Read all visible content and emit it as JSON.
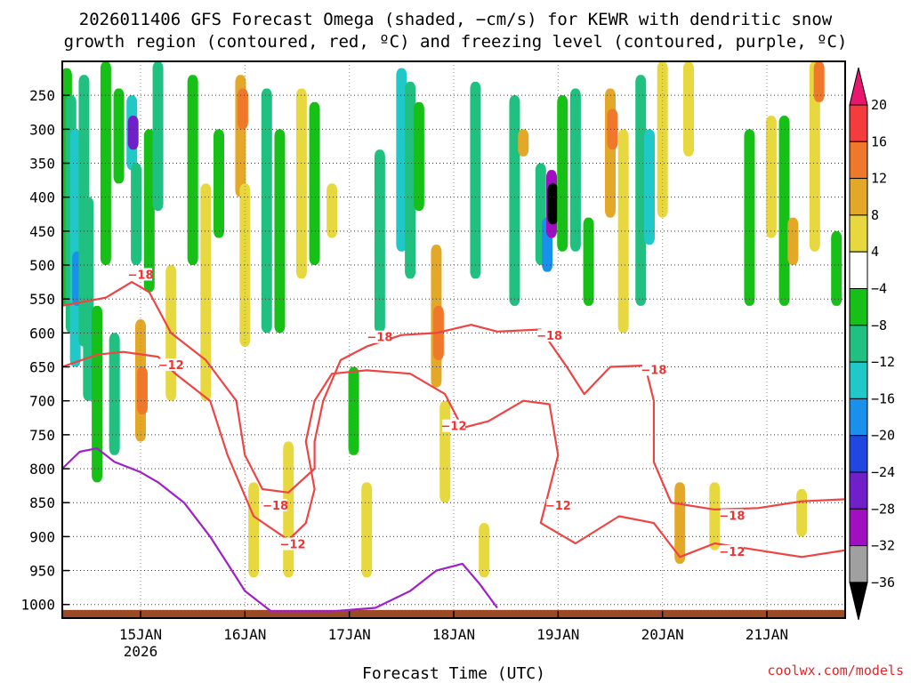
{
  "chart_data": {
    "type": "heatmap",
    "title_lines": [
      "2026011406 GFS Forecast Omega (shaded, −cm/s) for KEWR with dendritic snow",
      "growth region (contoured, red, ºC) and freezing level (contoured, purple, ºC)"
    ],
    "xlabel": "Forecast Time (UTC)",
    "credit": "coolwx.com/models",
    "x_ticks": [
      {
        "t": 18,
        "label": "15JAN",
        "sub": "2026"
      },
      {
        "t": 42,
        "label": "16JAN",
        "sub": ""
      },
      {
        "t": 66,
        "label": "17JAN",
        "sub": ""
      },
      {
        "t": 90,
        "label": "18JAN",
        "sub": ""
      },
      {
        "t": 114,
        "label": "19JAN",
        "sub": ""
      },
      {
        "t": 138,
        "label": "20JAN",
        "sub": ""
      },
      {
        "t": 162,
        "label": "21JAN",
        "sub": ""
      }
    ],
    "xlim_hours": [
      0,
      180
    ],
    "y_ticks": [
      {
        "p": 250,
        "label": "250"
      },
      {
        "p": 300,
        "label": "300"
      },
      {
        "p": 350,
        "label": "350"
      },
      {
        "p": 400,
        "label": "400"
      },
      {
        "p": 450,
        "label": "450"
      },
      {
        "p": 500,
        "label": "500"
      },
      {
        "p": 550,
        "label": "550"
      },
      {
        "p": 600,
        "label": "600"
      },
      {
        "p": 650,
        "label": "650"
      },
      {
        "p": 700,
        "label": "700"
      },
      {
        "p": 750,
        "label": "750"
      },
      {
        "p": 800,
        "label": "800"
      },
      {
        "p": 850,
        "label": "850"
      },
      {
        "p": 900,
        "label": "900"
      },
      {
        "p": 950,
        "label": "950"
      },
      {
        "p": 1000,
        "label": "1000"
      }
    ],
    "ylim_hpa": [
      200,
      1020
    ],
    "grid": true,
    "colorbar": {
      "labels": [
        "20",
        "16",
        "12",
        "8",
        "4",
        "−4",
        "−8",
        "−12",
        "−16",
        "−20",
        "−24",
        "−28",
        "−32",
        "−36"
      ],
      "levels": [
        20,
        16,
        12,
        8,
        4,
        -4,
        -8,
        -12,
        -16,
        -20,
        -24,
        -28,
        -32,
        -36
      ],
      "colors": [
        "#e8166e",
        "#f43c3c",
        "#f0782a",
        "#e4a828",
        "#e8d840",
        "#ffffff",
        "#16c016",
        "#20c080",
        "#20c8c8",
        "#1890ec",
        "#2048e0",
        "#7020c8",
        "#a010c0",
        "#a0a0a0",
        "#000000"
      ]
    },
    "shading": [
      {
        "t": 1,
        "p1": 210,
        "p2": 560,
        "v": -6
      },
      {
        "t": 2,
        "p1": 250,
        "p2": 600,
        "v": -10
      },
      {
        "t": 3,
        "p1": 300,
        "p2": 650,
        "v": -12
      },
      {
        "t": 3.5,
        "p1": 480,
        "p2": 560,
        "v": -16
      },
      {
        "t": 5,
        "p1": 220,
        "p2": 620,
        "v": -8
      },
      {
        "t": 6,
        "p1": 400,
        "p2": 700,
        "v": -10
      },
      {
        "t": 8,
        "p1": 560,
        "p2": 820,
        "v": -6
      },
      {
        "t": 10,
        "p1": 200,
        "p2": 500,
        "v": -6
      },
      {
        "t": 12,
        "p1": 600,
        "p2": 780,
        "v": -8
      },
      {
        "t": 13,
        "p1": 240,
        "p2": 380,
        "v": -6
      },
      {
        "t": 16,
        "p1": 250,
        "p2": 360,
        "v": -12
      },
      {
        "t": 16.3,
        "p1": 280,
        "p2": 330,
        "v": -24
      },
      {
        "t": 17,
        "p1": 350,
        "p2": 500,
        "v": -8
      },
      {
        "t": 18,
        "p1": 580,
        "p2": 760,
        "v": 8
      },
      {
        "t": 18.4,
        "p1": 650,
        "p2": 720,
        "v": 14
      },
      {
        "t": 20,
        "p1": 300,
        "p2": 540,
        "v": -6
      },
      {
        "t": 22,
        "p1": 200,
        "p2": 420,
        "v": -8
      },
      {
        "t": 25,
        "p1": 500,
        "p2": 700,
        "v": 5
      },
      {
        "t": 30,
        "p1": 220,
        "p2": 500,
        "v": -7
      },
      {
        "t": 33,
        "p1": 380,
        "p2": 700,
        "v": 5
      },
      {
        "t": 36,
        "p1": 300,
        "p2": 460,
        "v": -6
      },
      {
        "t": 41,
        "p1": 220,
        "p2": 400,
        "v": 10
      },
      {
        "t": 41.5,
        "p1": 240,
        "p2": 300,
        "v": 14
      },
      {
        "t": 42,
        "p1": 380,
        "p2": 620,
        "v": 5
      },
      {
        "t": 44,
        "p1": 820,
        "p2": 960,
        "v": 5
      },
      {
        "t": 47,
        "p1": 240,
        "p2": 600,
        "v": -8
      },
      {
        "t": 50,
        "p1": 300,
        "p2": 600,
        "v": -7
      },
      {
        "t": 52,
        "p1": 760,
        "p2": 960,
        "v": 5
      },
      {
        "t": 55,
        "p1": 240,
        "p2": 520,
        "v": 5
      },
      {
        "t": 58,
        "p1": 260,
        "p2": 500,
        "v": -6
      },
      {
        "t": 62,
        "p1": 380,
        "p2": 460,
        "v": 5
      },
      {
        "t": 67,
        "p1": 650,
        "p2": 780,
        "v": -7
      },
      {
        "t": 70,
        "p1": 820,
        "p2": 960,
        "v": 5
      },
      {
        "t": 73,
        "p1": 330,
        "p2": 600,
        "v": -8
      },
      {
        "t": 78,
        "p1": 210,
        "p2": 480,
        "v": -12
      },
      {
        "t": 80,
        "p1": 230,
        "p2": 520,
        "v": -8
      },
      {
        "t": 82,
        "p1": 260,
        "p2": 420,
        "v": -6
      },
      {
        "t": 86,
        "p1": 470,
        "p2": 680,
        "v": 8
      },
      {
        "t": 86.5,
        "p1": 560,
        "p2": 640,
        "v": 13
      },
      {
        "t": 88,
        "p1": 700,
        "p2": 850,
        "v": 5
      },
      {
        "t": 95,
        "p1": 230,
        "p2": 520,
        "v": -8
      },
      {
        "t": 97,
        "p1": 880,
        "p2": 960,
        "v": 5
      },
      {
        "t": 104,
        "p1": 250,
        "p2": 560,
        "v": -9
      },
      {
        "t": 106,
        "p1": 300,
        "p2": 340,
        "v": 9
      },
      {
        "t": 110,
        "p1": 350,
        "p2": 500,
        "v": -8
      },
      {
        "t": 111.5,
        "p1": 430,
        "p2": 510,
        "v": -16
      },
      {
        "t": 112.5,
        "p1": 360,
        "p2": 460,
        "v": -30
      },
      {
        "t": 112.8,
        "p1": 380,
        "p2": 440,
        "v": -36
      },
      {
        "t": 115,
        "p1": 250,
        "p2": 480,
        "v": -7
      },
      {
        "t": 118,
        "p1": 240,
        "p2": 480,
        "v": -8
      },
      {
        "t": 121,
        "p1": 430,
        "p2": 560,
        "v": -6
      },
      {
        "t": 126,
        "p1": 240,
        "p2": 430,
        "v": 10
      },
      {
        "t": 126.5,
        "p1": 270,
        "p2": 330,
        "v": 14
      },
      {
        "t": 129,
        "p1": 300,
        "p2": 600,
        "v": 5
      },
      {
        "t": 133,
        "p1": 220,
        "p2": 560,
        "v": -9
      },
      {
        "t": 135,
        "p1": 300,
        "p2": 470,
        "v": -14
      },
      {
        "t": 138,
        "p1": 200,
        "p2": 430,
        "v": 5
      },
      {
        "t": 142,
        "p1": 820,
        "p2": 940,
        "v": 8
      },
      {
        "t": 144,
        "p1": 200,
        "p2": 340,
        "v": 5
      },
      {
        "t": 150,
        "p1": 820,
        "p2": 920,
        "v": 5
      },
      {
        "t": 158,
        "p1": 300,
        "p2": 560,
        "v": -7
      },
      {
        "t": 163,
        "p1": 280,
        "p2": 460,
        "v": 5
      },
      {
        "t": 166,
        "p1": 280,
        "p2": 560,
        "v": -7
      },
      {
        "t": 168,
        "p1": 430,
        "p2": 500,
        "v": 9
      },
      {
        "t": 170,
        "p1": 830,
        "p2": 900,
        "v": 5
      },
      {
        "t": 173,
        "p1": 200,
        "p2": 480,
        "v": 6
      },
      {
        "t": 174,
        "p1": 200,
        "p2": 260,
        "v": 12
      },
      {
        "t": 178,
        "p1": 450,
        "p2": 560,
        "v": -6
      }
    ],
    "contours": [
      {
        "label": "−18",
        "color": "#ee4444",
        "points": [
          [
            0,
            560
          ],
          [
            10,
            548
          ],
          [
            16,
            525
          ],
          [
            20,
            540
          ],
          [
            25,
            600
          ],
          [
            33,
            640
          ],
          [
            40,
            700
          ],
          [
            42,
            780
          ],
          [
            46,
            830
          ],
          [
            52,
            835
          ],
          [
            58,
            800
          ],
          [
            58,
            760
          ],
          [
            60,
            700
          ],
          [
            64,
            640
          ],
          [
            70,
            620
          ],
          [
            78,
            603
          ],
          [
            86,
            600
          ],
          [
            94,
            588
          ],
          [
            100,
            598
          ],
          [
            110,
            595
          ],
          [
            116,
            650
          ],
          [
            120,
            690
          ],
          [
            126,
            650
          ],
          [
            134,
            648
          ],
          [
            136,
            700
          ],
          [
            136,
            790
          ],
          [
            140,
            850
          ],
          [
            150,
            860
          ],
          [
            160,
            858
          ],
          [
            170,
            848
          ],
          [
            180,
            845
          ]
        ]
      },
      {
        "label": "−12",
        "color": "#ee4444",
        "points": [
          [
            0,
            650
          ],
          [
            8,
            632
          ],
          [
            14,
            628
          ],
          [
            22,
            635
          ],
          [
            26,
            660
          ],
          [
            34,
            700
          ],
          [
            38,
            780
          ],
          [
            44,
            870
          ],
          [
            52,
            905
          ],
          [
            56,
            880
          ],
          [
            58,
            830
          ],
          [
            56,
            760
          ],
          [
            58,
            700
          ],
          [
            62,
            660
          ],
          [
            70,
            655
          ],
          [
            80,
            660
          ],
          [
            88,
            690
          ],
          [
            92,
            740
          ],
          [
            98,
            730
          ],
          [
            106,
            700
          ],
          [
            112,
            705
          ],
          [
            114,
            780
          ],
          [
            110,
            880
          ],
          [
            118,
            910
          ],
          [
            128,
            870
          ],
          [
            136,
            880
          ],
          [
            142,
            930
          ],
          [
            150,
            910
          ],
          [
            160,
            920
          ],
          [
            170,
            930
          ],
          [
            180,
            920
          ]
        ]
      },
      {
        "label": "",
        "color": "#a020c8",
        "points": [
          [
            0,
            800
          ],
          [
            4,
            775
          ],
          [
            8,
            770
          ],
          [
            12,
            790
          ],
          [
            18,
            805
          ],
          [
            22,
            820
          ],
          [
            28,
            850
          ],
          [
            34,
            900
          ],
          [
            38,
            940
          ],
          [
            42,
            980
          ],
          [
            48,
            1010
          ],
          [
            62,
            1010
          ],
          [
            72,
            1005
          ],
          [
            80,
            980
          ],
          [
            86,
            950
          ],
          [
            92,
            940
          ],
          [
            96,
            970
          ],
          [
            100,
            1005
          ]
        ]
      }
    ],
    "contour_labels": [
      {
        "t": 18,
        "p": 515,
        "text": "−18"
      },
      {
        "t": 25,
        "p": 648,
        "text": "−12"
      },
      {
        "t": 49,
        "p": 855,
        "text": "−18"
      },
      {
        "t": 53,
        "p": 912,
        "text": "−12"
      },
      {
        "t": 73,
        "p": 607,
        "text": "−18"
      },
      {
        "t": 90,
        "p": 738,
        "text": "−12"
      },
      {
        "t": 112,
        "p": 605,
        "text": "−18"
      },
      {
        "t": 114,
        "p": 855,
        "text": "−12"
      },
      {
        "t": 136,
        "p": 655,
        "text": "−18"
      },
      {
        "t": 154,
        "p": 870,
        "text": "−18"
      },
      {
        "t": 154,
        "p": 923,
        "text": "−12"
      }
    ]
  }
}
